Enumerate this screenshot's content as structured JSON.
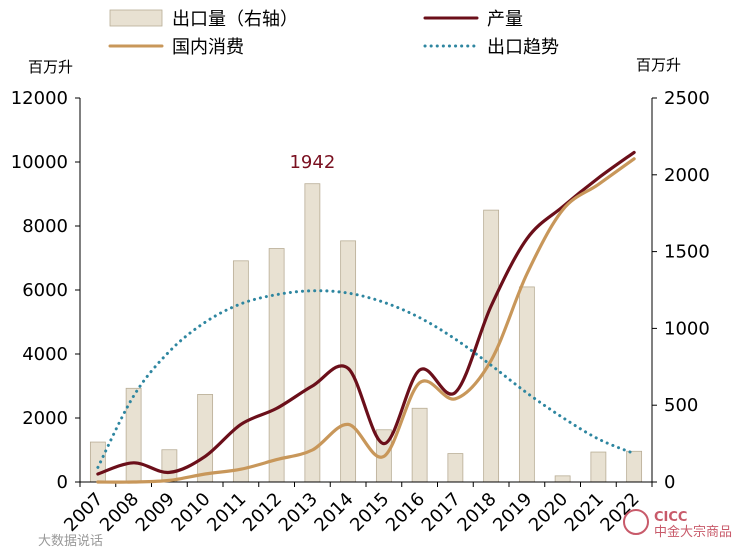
{
  "chart_data": {
    "type": "bar",
    "categories": [
      "2007",
      "2008",
      "2009",
      "2010",
      "2011",
      "2012",
      "2013",
      "2014",
      "2015",
      "2016",
      "2017",
      "2018",
      "2019",
      "2020",
      "2021",
      "2022"
    ],
    "left_axis": {
      "unit": "百万升",
      "ylim": [
        0,
        12000
      ],
      "ticks": [
        0,
        2000,
        4000,
        6000,
        8000,
        10000,
        12000
      ]
    },
    "right_axis": {
      "unit": "百万升",
      "ylim": [
        0,
        2500
      ],
      "ticks": [
        0,
        500,
        1000,
        1500,
        2000,
        2500
      ]
    },
    "series": [
      {
        "name": "出口量（右轴）",
        "kind": "bar",
        "axis": "right",
        "color": "#e8e1d2",
        "values": [
          260,
          610,
          210,
          570,
          1440,
          1520,
          1942,
          1570,
          340,
          480,
          185,
          1770,
          1270,
          40,
          195,
          200
        ]
      },
      {
        "name": "产量",
        "kind": "line",
        "axis": "left",
        "color": "#6b0f1a",
        "values": [
          250,
          600,
          300,
          800,
          1800,
          2300,
          3000,
          3550,
          1200,
          3500,
          2800,
          5500,
          7600,
          8600,
          9500,
          10300
        ]
      },
      {
        "name": "国内消费",
        "kind": "line",
        "axis": "left",
        "color": "#c8975a",
        "values": [
          0,
          0,
          50,
          250,
          400,
          700,
          1000,
          1800,
          800,
          3100,
          2600,
          3800,
          6500,
          8500,
          9300,
          10100
        ]
      },
      {
        "name": "出口趋势",
        "kind": "trend",
        "axis": "right",
        "color": "#2e86a0",
        "values": [
          95,
          560,
          850,
          1040,
          1160,
          1220,
          1245,
          1230,
          1170,
          1070,
          930,
          760,
          580,
          420,
          280,
          185
        ]
      }
    ],
    "annotations": [
      {
        "text": "1942",
        "category": "2013"
      }
    ],
    "grid": false,
    "legend": "top"
  },
  "watermark": {
    "left": "大数据说话",
    "brand": "CICC",
    "brand_sub": "中金大宗商品"
  }
}
